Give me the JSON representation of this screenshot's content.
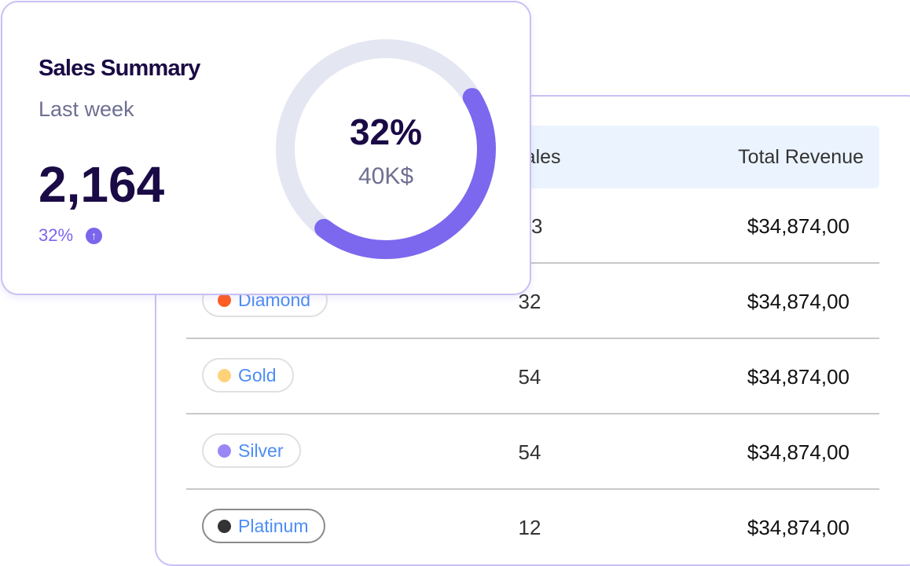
{
  "table": {
    "headers": {
      "sales": "Sales",
      "revenue": "Total Revenue"
    },
    "rows": [
      {
        "tier": "",
        "dot_color": "",
        "sales": "3",
        "revenue": "$34,874,00"
      },
      {
        "tier": "Diamond",
        "dot_color": "#ff5f1f",
        "sales": "32",
        "revenue": "$34,874,00"
      },
      {
        "tier": "Gold",
        "dot_color": "#ffd27a",
        "sales": "54",
        "revenue": "$34,874,00"
      },
      {
        "tier": "Silver",
        "dot_color": "#9a87f5",
        "sales": "54",
        "revenue": "$34,874,00"
      },
      {
        "tier": "Platinum",
        "dot_color": "#333333",
        "sales": "12",
        "revenue": "$34,874,00"
      }
    ]
  },
  "summary": {
    "title": "Sales Summary",
    "period": "Last week",
    "total": "2,164",
    "change": "32%",
    "change_direction": "up",
    "donut": {
      "percent_label": "32%",
      "amount": "40K$",
      "track_color": "#e4e6f2",
      "fill_color": "#7b68ee"
    }
  }
}
